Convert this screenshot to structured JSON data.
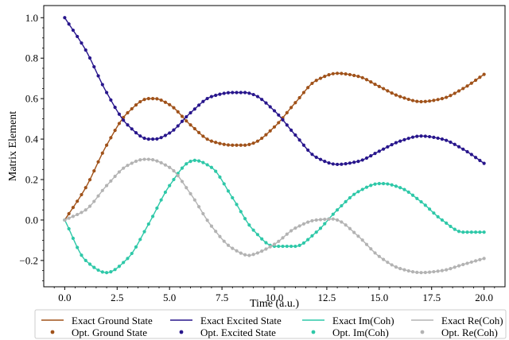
{
  "chart_data": {
    "type": "line",
    "xlabel": "Time (a.u.)",
    "ylabel": "Matrix Element",
    "xlim": [
      -1.0,
      21.0
    ],
    "ylim": [
      -0.33,
      1.06
    ],
    "xticks": [
      0.0,
      2.5,
      5.0,
      7.5,
      10.0,
      12.5,
      15.0,
      17.5,
      20.0
    ],
    "xtick_labels": [
      "0.0",
      "2.5",
      "5.0",
      "7.5",
      "10.0",
      "12.5",
      "15.0",
      "17.5",
      "20.0"
    ],
    "yticks": [
      -0.2,
      0.0,
      0.2,
      0.4,
      0.6,
      0.8,
      1.0
    ],
    "ytick_labels": [
      "−0.2",
      "0.0",
      "0.2",
      "0.4",
      "0.6",
      "0.8",
      "1.0"
    ],
    "grid": false,
    "legend_position": "bottom",
    "series": [
      {
        "key": "ground",
        "color": "#a0521a",
        "line_label": "Exact Ground State",
        "point_label": "Opt. Ground State",
        "x": [
          0,
          1,
          2,
          3,
          4,
          4.3,
          5,
          6,
          7,
          8,
          8.6,
          9,
          10,
          11,
          12,
          13,
          14,
          15,
          16,
          17,
          18,
          19,
          20
        ],
        "y": [
          0.0,
          0.16,
          0.37,
          0.53,
          0.6,
          0.6,
          0.57,
          0.47,
          0.39,
          0.37,
          0.37,
          0.38,
          0.46,
          0.58,
          0.69,
          0.725,
          0.71,
          0.66,
          0.61,
          0.585,
          0.6,
          0.65,
          0.72
        ]
      },
      {
        "key": "excited",
        "color": "#28168c",
        "line_label": "Exact Excited State",
        "point_label": "Opt. Excited State",
        "x": [
          0,
          1,
          2,
          3,
          4,
          4.3,
          5,
          6,
          7,
          8,
          8.6,
          9,
          10,
          11,
          12,
          13,
          14,
          15,
          16,
          17,
          18,
          19,
          20
        ],
        "y": [
          1.0,
          0.84,
          0.63,
          0.47,
          0.4,
          0.4,
          0.43,
          0.53,
          0.61,
          0.63,
          0.63,
          0.62,
          0.54,
          0.42,
          0.31,
          0.275,
          0.29,
          0.34,
          0.39,
          0.415,
          0.4,
          0.35,
          0.28
        ]
      },
      {
        "key": "imcoh",
        "color": "#2ec8a8",
        "line_label": "Exact Im(Coh)",
        "point_label": "Opt. Im(Coh)",
        "x": [
          0,
          1,
          2,
          3,
          4,
          5,
          6,
          6.2,
          7,
          8,
          9,
          10,
          11,
          12,
          13,
          14,
          15,
          15.2,
          16,
          17,
          18,
          19,
          20
        ],
        "y": [
          0.0,
          -0.2,
          -0.26,
          -0.19,
          -0.02,
          0.17,
          0.29,
          0.295,
          0.26,
          0.11,
          -0.05,
          -0.13,
          -0.13,
          -0.06,
          0.05,
          0.14,
          0.18,
          0.18,
          0.16,
          0.09,
          0.0,
          -0.06,
          -0.06
        ]
      },
      {
        "key": "recoh",
        "color": "#b3b3b3",
        "line_label": "Exact Re(Coh)",
        "point_label": "Opt. Re(Coh)",
        "x": [
          0,
          1,
          2,
          3,
          3.8,
          4,
          5,
          6,
          7,
          8,
          8.8,
          9,
          10,
          11,
          12,
          12.8,
          13,
          14,
          15,
          16,
          17,
          18,
          19,
          20
        ],
        "y": [
          0.0,
          0.05,
          0.17,
          0.27,
          0.3,
          0.3,
          0.26,
          0.13,
          -0.03,
          -0.14,
          -0.175,
          -0.17,
          -0.12,
          -0.04,
          0.0,
          0.005,
          0.0,
          -0.08,
          -0.18,
          -0.24,
          -0.26,
          -0.25,
          -0.22,
          -0.19
        ]
      }
    ]
  }
}
